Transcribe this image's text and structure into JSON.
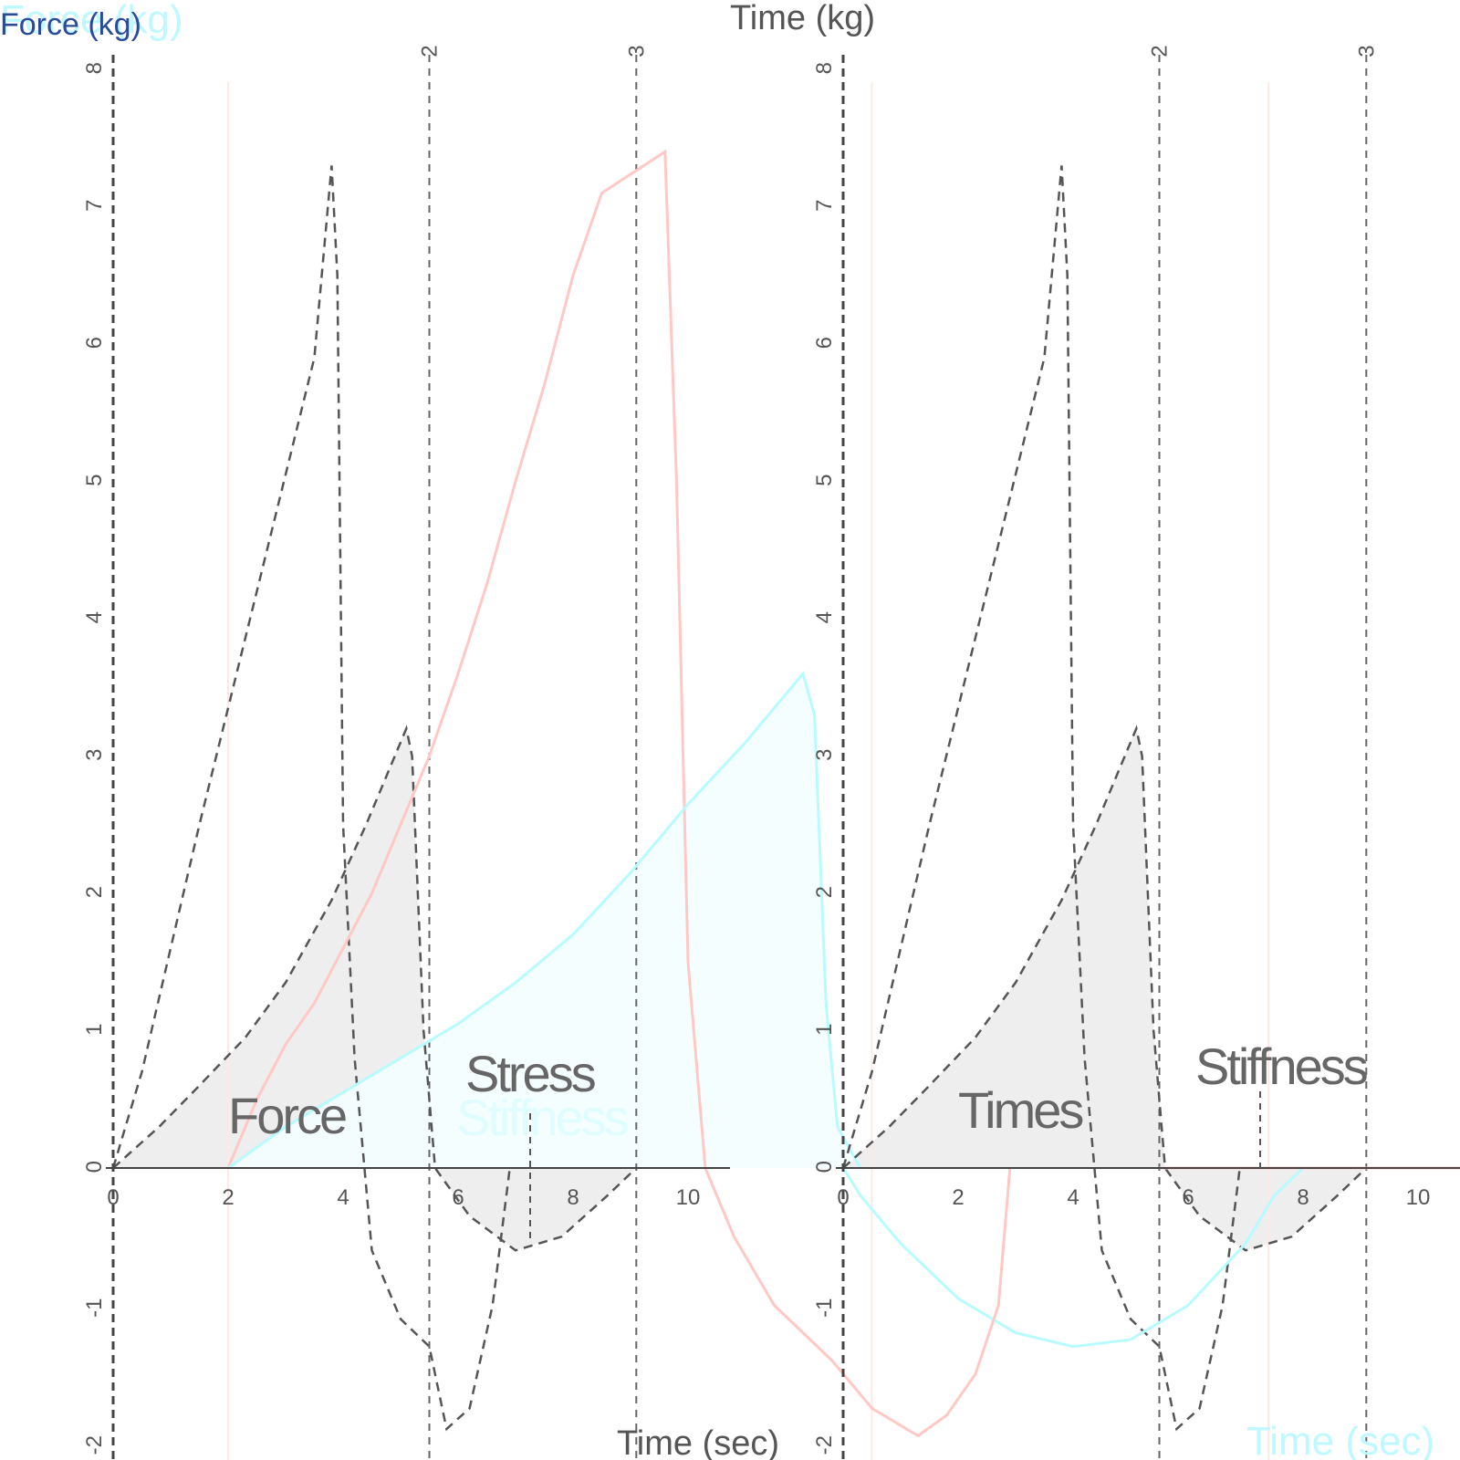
{
  "colors": {
    "background": "#ffffff",
    "axis": "#444444",
    "dashed_curve": "#555555",
    "fill_gray": "#eeeeee",
    "fill_cyan": "#f3feff",
    "cyan_line": "#b8fbff",
    "pink_line": "#ffc8c4",
    "title_blue": "#2a4a9a",
    "title_cyan": "#bff8ff"
  },
  "chart_data": [
    {
      "type": "line",
      "panel": "left",
      "title_parts": [
        "Force (kg)",
        "Force (kg)"
      ],
      "ylabel": "Force (kg)",
      "xlabel": "Time (sec)",
      "xlim": [
        0,
        10.8
      ],
      "ylim": [
        -2,
        8.1
      ],
      "x_ticks": [
        "0",
        "2",
        "4",
        "6",
        "8",
        "10"
      ],
      "y_ticks": [
        "-2",
        "-1",
        "0",
        "1",
        "2",
        "3",
        "4",
        "5",
        "6",
        "7",
        "8"
      ],
      "top_ticks": [
        "2",
        "3"
      ],
      "vlines": [
        5.5,
        9.1
      ],
      "faint_vline": 2.0,
      "annotations": [
        "Force",
        "Stress",
        "Stiffness"
      ],
      "series": [
        {
          "style": "dashed",
          "points": [
            [
              0,
              0
            ],
            [
              0.5,
              0.7
            ],
            [
              1,
              1.6
            ],
            [
              1.5,
              2.5
            ],
            [
              2,
              3.35
            ],
            [
              2.5,
              4.2
            ],
            [
              3,
              5.05
            ],
            [
              3.5,
              5.9
            ],
            [
              3.8,
              7.3
            ],
            [
              3.9,
              6.5
            ],
            [
              4,
              2.5
            ],
            [
              4.2,
              0.8
            ],
            [
              4.5,
              -0.6
            ],
            [
              5,
              -1.1
            ],
            [
              5.5,
              -1.3
            ],
            [
              5.8,
              -1.9
            ],
            [
              6.2,
              -1.75
            ],
            [
              6.6,
              -1.0
            ],
            [
              6.9,
              0
            ]
          ]
        },
        {
          "style": "dashed-filled",
          "points": [
            [
              0,
              0
            ],
            [
              0.8,
              0.3
            ],
            [
              1.5,
              0.6
            ],
            [
              2.3,
              0.95
            ],
            [
              3,
              1.35
            ],
            [
              3.8,
              1.95
            ],
            [
              4.4,
              2.5
            ],
            [
              5.1,
              3.2
            ],
            [
              5.2,
              3.0
            ],
            [
              5.4,
              1.0
            ],
            [
              5.6,
              0
            ],
            [
              6.2,
              -0.35
            ],
            [
              7,
              -0.6
            ],
            [
              7.8,
              -0.5
            ],
            [
              8.6,
              -0.2
            ],
            [
              9.1,
              0
            ]
          ]
        },
        {
          "style": "pink",
          "points": [
            [
              2,
              0
            ],
            [
              2.5,
              0.5
            ],
            [
              3,
              0.9
            ],
            [
              3.5,
              1.2
            ],
            [
              4,
              1.6
            ],
            [
              4.5,
              2.0
            ],
            [
              5,
              2.5
            ],
            [
              5.5,
              3.0
            ],
            [
              6,
              3.6
            ],
            [
              6.5,
              4.25
            ],
            [
              7,
              5.0
            ],
            [
              7.5,
              5.7
            ],
            [
              8,
              6.5
            ],
            [
              8.5,
              7.1
            ],
            [
              9.6,
              7.4
            ],
            [
              9.8,
              5.0
            ],
            [
              10,
              1.5
            ],
            [
              10.3,
              0
            ],
            [
              10.8,
              -0.5
            ]
          ]
        },
        {
          "style": "cyan-filled",
          "points": [
            [
              2,
              0
            ],
            [
              3,
              0.3
            ],
            [
              4,
              0.55
            ],
            [
              5,
              0.8
            ],
            [
              6,
              1.05
            ],
            [
              7,
              1.35
            ],
            [
              8,
              1.7
            ],
            [
              9,
              2.15
            ],
            [
              10,
              2.65
            ],
            [
              11,
              3.1
            ],
            [
              12,
              3.6
            ],
            [
              12.2,
              3.3
            ],
            [
              12.4,
              1.2
            ],
            [
              12.6,
              0.3
            ],
            [
              13,
              0
            ]
          ]
        }
      ]
    },
    {
      "type": "line",
      "panel": "right",
      "title_parts": [
        "Time (kg)"
      ],
      "ylabel": "Time (kg)",
      "xlabel": "Time (sec)",
      "xlim": [
        0,
        10.8
      ],
      "ylim": [
        -2,
        8.1
      ],
      "x_ticks": [
        "0",
        "2",
        "4",
        "6",
        "8",
        "10"
      ],
      "y_ticks": [
        "-2",
        "-1",
        "0",
        "1",
        "2",
        "3",
        "4",
        "5",
        "6",
        "7",
        "8"
      ],
      "top_ticks": [
        "2",
        "3"
      ],
      "vlines": [
        5.5,
        9.1
      ],
      "faint_vlines": [
        0.5,
        7.4
      ],
      "annotations": [
        "Times",
        "Stiffness"
      ],
      "series": [
        {
          "style": "dashed",
          "points": [
            [
              0,
              0
            ],
            [
              0.5,
              0.7
            ],
            [
              1,
              1.6
            ],
            [
              1.5,
              2.5
            ],
            [
              2,
              3.35
            ],
            [
              2.5,
              4.2
            ],
            [
              3,
              5.05
            ],
            [
              3.5,
              5.9
            ],
            [
              3.8,
              7.3
            ],
            [
              3.9,
              6.5
            ],
            [
              4,
              2.5
            ],
            [
              4.2,
              0.8
            ],
            [
              4.5,
              -0.6
            ],
            [
              5,
              -1.1
            ],
            [
              5.5,
              -1.3
            ],
            [
              5.8,
              -1.9
            ],
            [
              6.2,
              -1.75
            ],
            [
              6.6,
              -1.0
            ],
            [
              6.9,
              0
            ]
          ]
        },
        {
          "style": "dashed-filled",
          "points": [
            [
              0,
              0
            ],
            [
              0.8,
              0.3
            ],
            [
              1.5,
              0.6
            ],
            [
              2.3,
              0.95
            ],
            [
              3,
              1.35
            ],
            [
              3.8,
              1.95
            ],
            [
              4.4,
              2.5
            ],
            [
              5.1,
              3.2
            ],
            [
              5.2,
              3.0
            ],
            [
              5.4,
              1.0
            ],
            [
              5.6,
              0
            ],
            [
              6.2,
              -0.35
            ],
            [
              7,
              -0.6
            ],
            [
              7.8,
              -0.5
            ],
            [
              8.6,
              -0.2
            ],
            [
              9.1,
              0
            ]
          ]
        },
        {
          "style": "cyan",
          "points": [
            [
              0,
              0
            ],
            [
              0.3,
              -0.2
            ],
            [
              1,
              -0.55
            ],
            [
              2,
              -0.95
            ],
            [
              3,
              -1.2
            ],
            [
              4,
              -1.3
            ],
            [
              5,
              -1.25
            ],
            [
              6,
              -1.0
            ],
            [
              7,
              -0.55
            ],
            [
              7.5,
              -0.2
            ],
            [
              8,
              0
            ],
            [
              10.8,
              0
            ]
          ]
        },
        {
          "style": "pink",
          "points": [
            [
              5.5,
              0
            ],
            [
              7.4,
              0
            ],
            [
              10.8,
              0
            ]
          ]
        }
      ]
    },
    {
      "type": "line",
      "panel": "middle-pink",
      "series": [
        {
          "style": "pink",
          "points": [
            [
              10.8,
              -0.5
            ],
            [
              11.5,
              -1.0
            ],
            [
              12.5,
              -1.4
            ],
            [
              13.2,
              -1.75
            ],
            [
              14,
              -1.95
            ],
            [
              14.5,
              -1.8
            ],
            [
              15,
              -1.5
            ],
            [
              15.4,
              -1.0
            ],
            [
              15.6,
              0
            ]
          ]
        }
      ]
    }
  ]
}
